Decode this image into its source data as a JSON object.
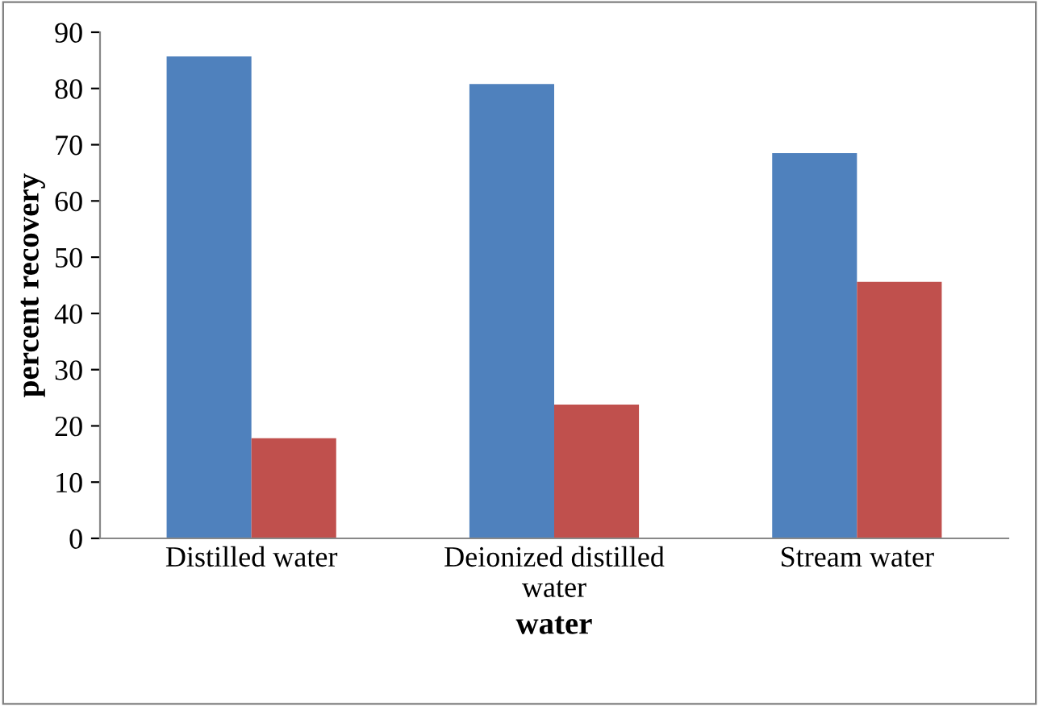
{
  "chart_data": {
    "type": "bar",
    "xlabel": "water",
    "ylabel": "percent recovery",
    "categories": [
      "Distilled water",
      "Deionized distilled\nwater",
      "Stream water"
    ],
    "series": [
      {
        "color": "#4f81bd",
        "values": [
          85.7,
          80.8,
          68.5
        ]
      },
      {
        "color": "#c0504d",
        "values": [
          17.8,
          23.8,
          45.6
        ]
      }
    ],
    "ylim": [
      0,
      90
    ],
    "yticks": [
      0,
      10,
      20,
      30,
      40,
      50,
      60,
      70,
      80,
      90
    ],
    "grid": false,
    "legend": false
  }
}
